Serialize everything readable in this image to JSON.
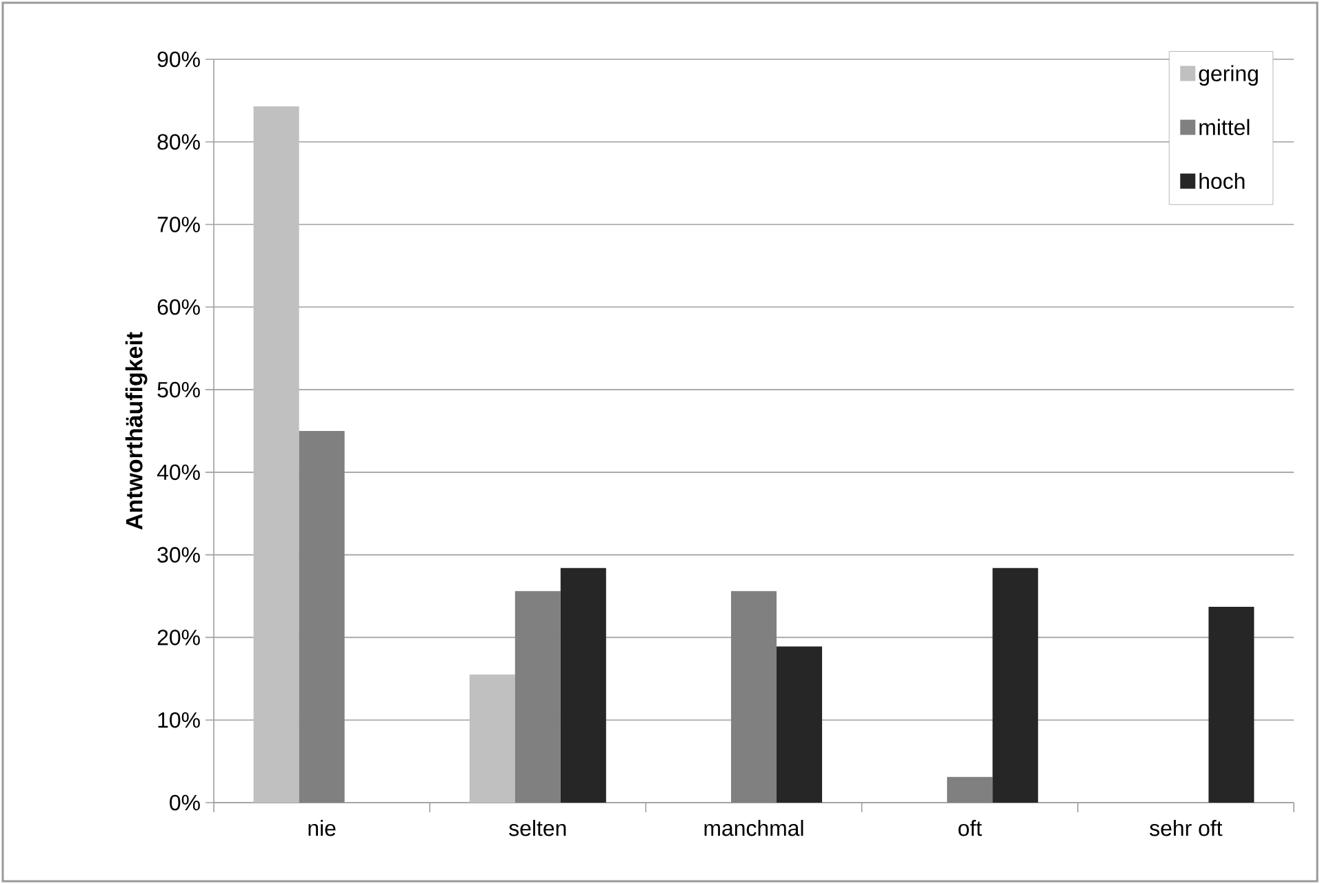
{
  "chart_data": {
    "type": "bar",
    "ylabel": "Antworthäufigkeit",
    "categories": [
      "nie",
      "selten",
      "manchmal",
      "oft",
      "sehr oft"
    ],
    "series": [
      {
        "name": "gering",
        "color": "#c0c0c0",
        "values": [
          0.843,
          0.155,
          0,
          0,
          0
        ]
      },
      {
        "name": "mittel",
        "color": "#808080",
        "values": [
          0.45,
          0.256,
          0.256,
          0.031,
          0
        ]
      },
      {
        "name": "hoch",
        "color": "#262626",
        "values": [
          0,
          0.284,
          0.189,
          0.284,
          0.237
        ]
      }
    ],
    "ylim": [
      0,
      0.9
    ],
    "yticks": [
      {
        "value": 0,
        "label": "0%"
      },
      {
        "value": 0.1,
        "label": "10%"
      },
      {
        "value": 0.2,
        "label": "20%"
      },
      {
        "value": 0.3,
        "label": "30%"
      },
      {
        "value": 0.4,
        "label": "40%"
      },
      {
        "value": 0.5,
        "label": "50%"
      },
      {
        "value": 0.6,
        "label": "60%"
      },
      {
        "value": 0.7,
        "label": "70%"
      },
      {
        "value": 0.8,
        "label": "80%"
      },
      {
        "value": 0.9,
        "label": "90%"
      }
    ],
    "grid": "y",
    "legend": "top right"
  }
}
